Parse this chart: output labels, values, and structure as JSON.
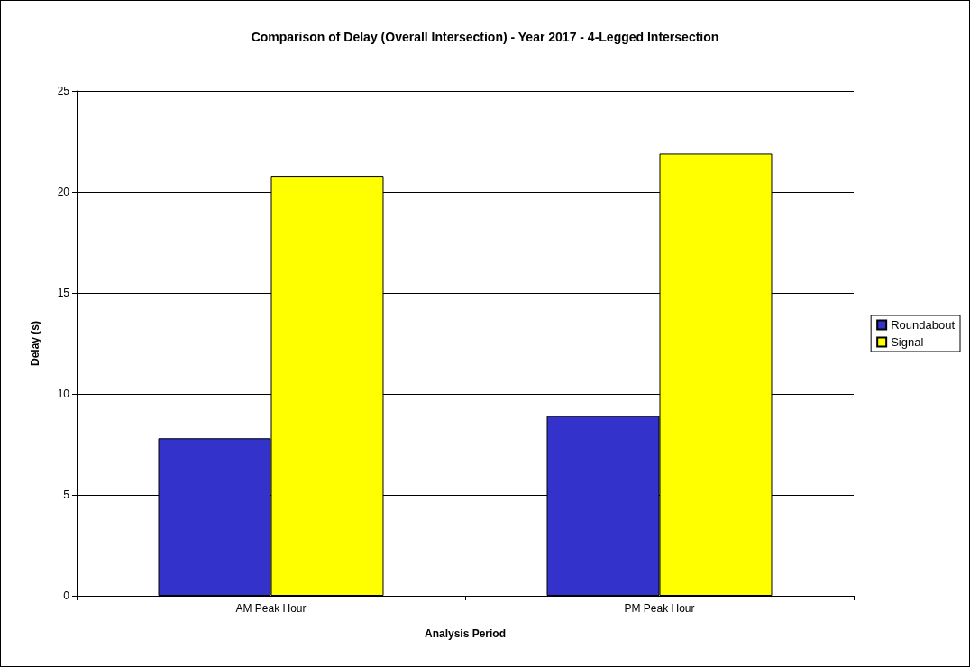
{
  "chart_data": {
    "type": "bar",
    "title": "Comparison of Delay (Overall Intersection) - Year 2017 - 4-Legged Intersection",
    "xlabel": "Analysis Period",
    "ylabel": "Delay (s)",
    "categories": [
      "AM Peak Hour",
      "PM Peak Hour"
    ],
    "series": [
      {
        "name": "Roundabout",
        "color": "#3333cc",
        "values": [
          7.8,
          8.9
        ]
      },
      {
        "name": "Signal",
        "color": "#ffff00",
        "values": [
          20.8,
          21.9
        ]
      }
    ],
    "ylim": [
      0,
      25
    ],
    "yticks": [
      0,
      5,
      10,
      15,
      20,
      25
    ],
    "grid": "y",
    "legend": "right"
  }
}
